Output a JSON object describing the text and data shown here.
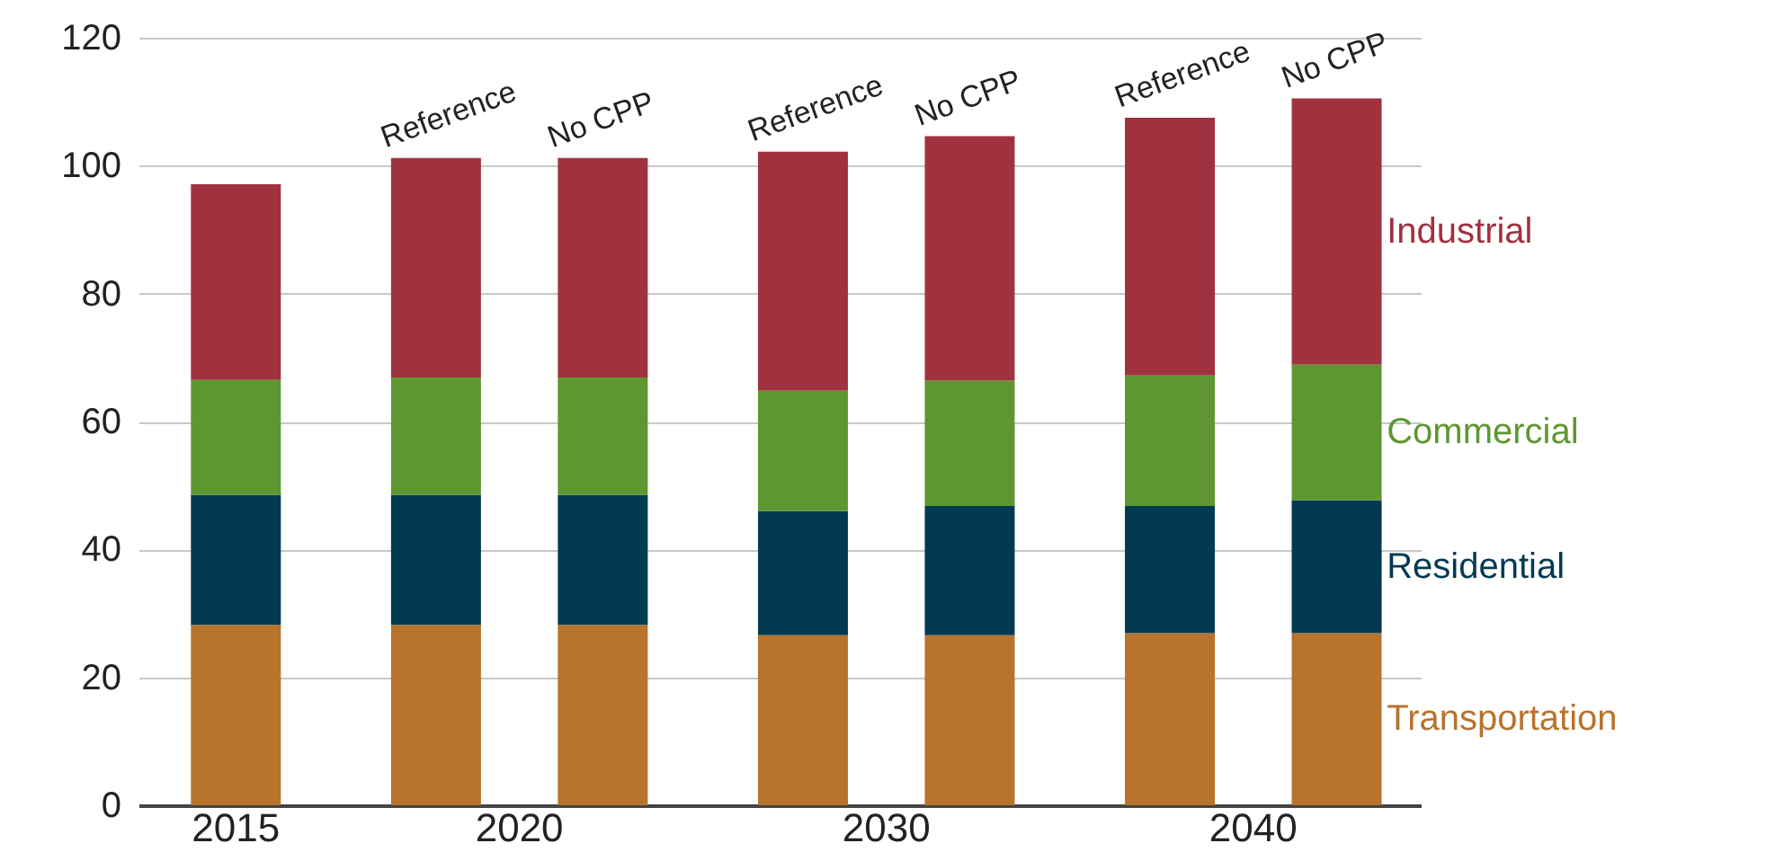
{
  "chart_data": {
    "type": "bar",
    "stacked": true,
    "categories": [
      null,
      "Reference",
      "No CPP",
      "Reference",
      "No CPP",
      "Reference",
      "No CPP"
    ],
    "series": [
      {
        "name": "Transportation",
        "color": "#b8732c",
        "values": [
          28.2,
          28.2,
          28.2,
          26.6,
          26.6,
          26.9,
          26.9
        ]
      },
      {
        "name": "Residential",
        "color": "#023a52",
        "values": [
          20.3,
          20.3,
          20.3,
          19.4,
          20.2,
          19.9,
          20.8
        ]
      },
      {
        "name": "Commercial",
        "color": "#5e9732",
        "values": [
          18.0,
          18.4,
          18.4,
          18.8,
          19.6,
          20.4,
          21.2
        ]
      },
      {
        "name": "Industrial",
        "color": "#a03240",
        "values": [
          30.6,
          34.3,
          34.3,
          37.4,
          38.2,
          40.3,
          41.6
        ]
      }
    ],
    "ylim": [
      0,
      120
    ],
    "yticks": [
      0,
      20,
      40,
      60,
      80,
      100,
      120
    ],
    "grid": "y",
    "legend": "right",
    "annotations": [
      "2015",
      "2020",
      "2030",
      "2040"
    ]
  }
}
